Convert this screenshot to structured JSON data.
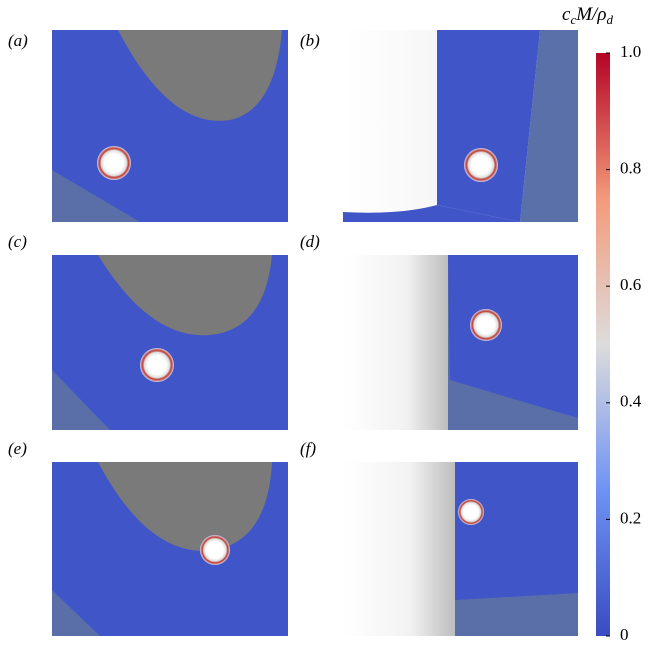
{
  "panels": [
    {
      "label": "(a)"
    },
    {
      "label": "(b)"
    },
    {
      "label": "(c)"
    },
    {
      "label": "(d)"
    },
    {
      "label": "(e)"
    },
    {
      "label": "(f)"
    }
  ],
  "colorbar": {
    "title_parts": [
      "c",
      "c",
      "M/ρ",
      "d"
    ],
    "lim": [
      0,
      1
    ],
    "ticks": [
      0,
      0.2,
      0.4,
      0.6,
      0.8,
      {
        "value": 1,
        "label": "1.0"
      }
    ]
  }
}
